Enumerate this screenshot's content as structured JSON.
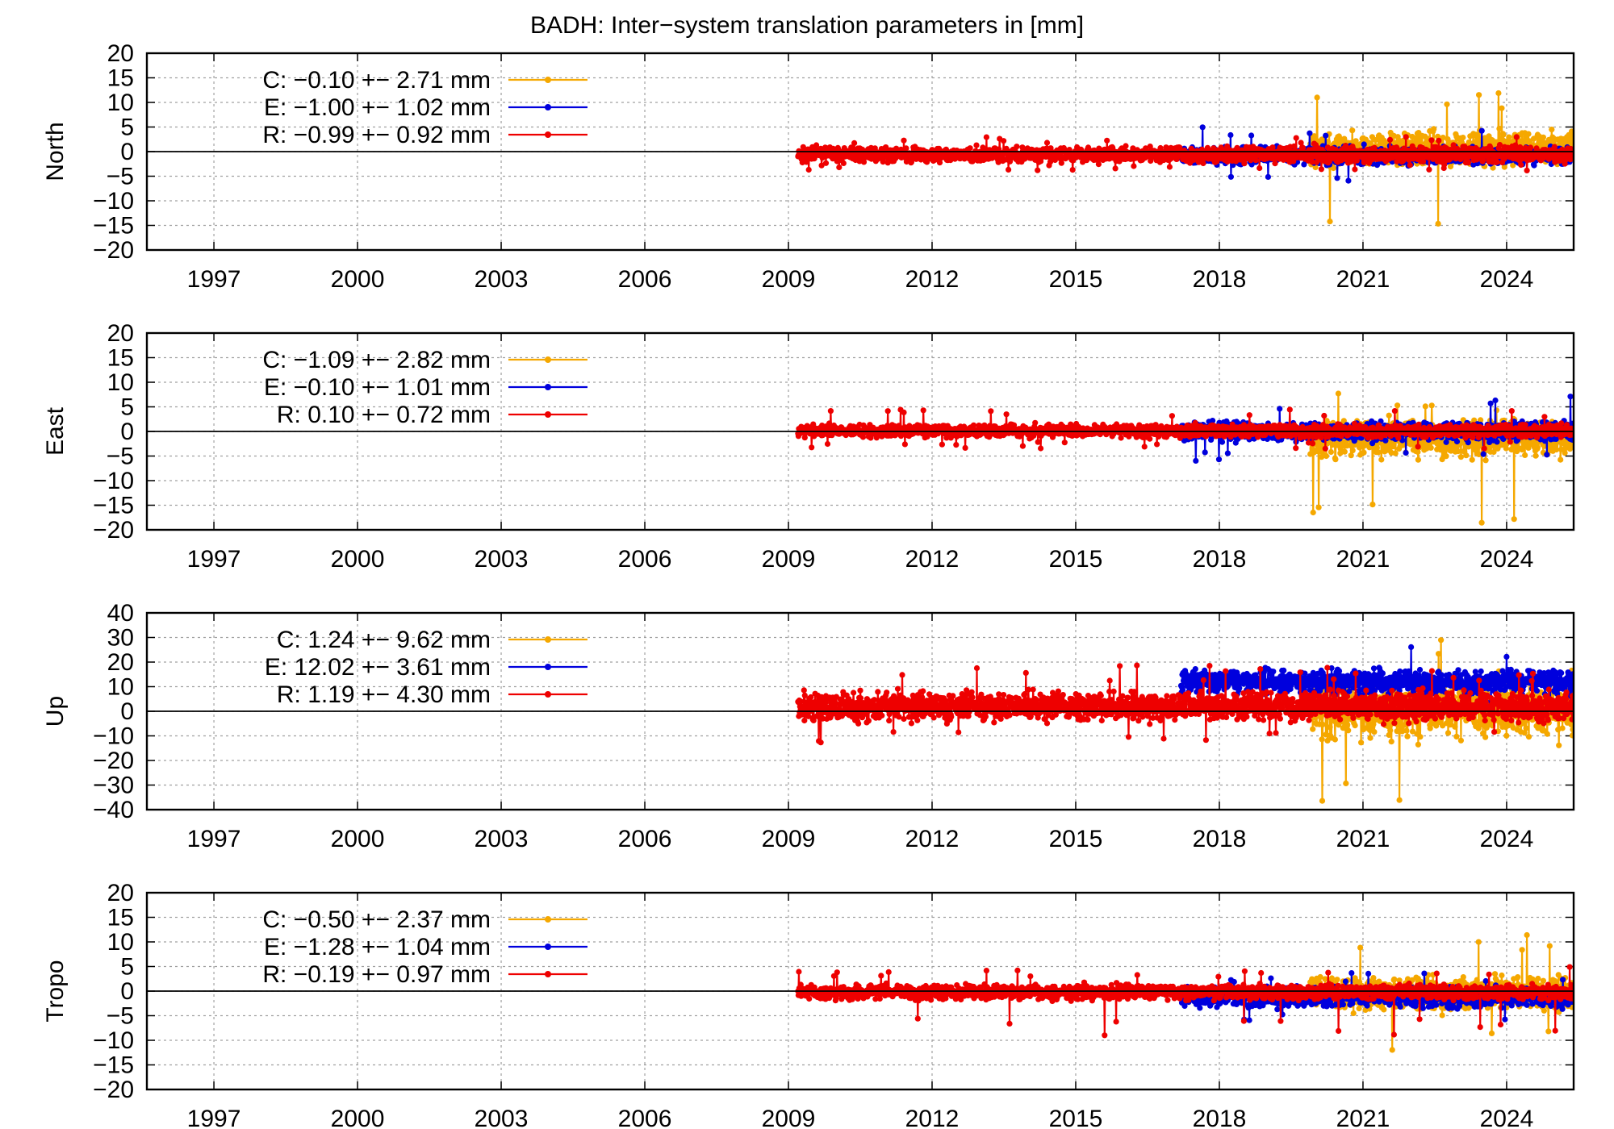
{
  "title": "BADH: Inter−system translation parameters in [mm]",
  "colors": {
    "C": "#f5a800",
    "E": "#0000dd",
    "R": "#ee0000",
    "axis": "#000000",
    "grid": "#a0a0a0"
  },
  "chart_data": [
    {
      "type": "scatter",
      "ylabel": "North",
      "xlim": [
        1995.6,
        2025.4
      ],
      "ylim": [
        -20,
        20
      ],
      "xticks": [
        1997,
        2000,
        2003,
        2006,
        2009,
        2012,
        2015,
        2018,
        2021,
        2024
      ],
      "yticks": [
        -20,
        -15,
        -10,
        -5,
        0,
        5,
        10,
        15,
        20
      ],
      "grid": true,
      "legend_position": "top-left",
      "series": [
        {
          "name": "C",
          "legend": "C:  −0.10 +− 2.71 mm",
          "start": 2019.9,
          "end": 2025.4,
          "center": 0.5,
          "band": 3.5,
          "spike_up": 12.5,
          "spike_down": -19.0
        },
        {
          "name": "E",
          "legend": "E:  −1.00 +− 1.02 mm",
          "start": 2017.2,
          "end": 2025.4,
          "center": -0.8,
          "band": 1.8,
          "spike_up": 5.0,
          "spike_down": -7.0
        },
        {
          "name": "R",
          "legend": "R:  −0.99 +− 0.92 mm",
          "start": 2009.2,
          "end": 2025.4,
          "center": -0.6,
          "band": 1.6,
          "spike_up": 3.0,
          "spike_down": -4.0
        }
      ]
    },
    {
      "type": "scatter",
      "ylabel": "East",
      "xlim": [
        1995.6,
        2025.4
      ],
      "ylim": [
        -20,
        20
      ],
      "xticks": [
        1997,
        2000,
        2003,
        2006,
        2009,
        2012,
        2015,
        2018,
        2021,
        2024
      ],
      "yticks": [
        -20,
        -15,
        -10,
        -5,
        0,
        5,
        10,
        15,
        20
      ],
      "grid": true,
      "legend_position": "top-left",
      "series": [
        {
          "name": "C",
          "legend": "C:  −1.09 +− 2.82 mm",
          "start": 2019.9,
          "end": 2025.4,
          "center": -1.5,
          "band": 4.0,
          "spike_up": 8.0,
          "spike_down": -19.0
        },
        {
          "name": "E",
          "legend": "E:  −0.10 +− 1.01 mm",
          "start": 2017.2,
          "end": 2025.4,
          "center": 0.0,
          "band": 2.0,
          "spike_up": 7.5,
          "spike_down": -6.5
        },
        {
          "name": "R",
          "legend": "R:   0.10 +− 0.72 mm",
          "start": 2009.2,
          "end": 2025.4,
          "center": 0.1,
          "band": 1.3,
          "spike_up": 4.5,
          "spike_down": -3.5
        }
      ]
    },
    {
      "type": "scatter",
      "ylabel": "Up",
      "xlim": [
        1995.6,
        2025.4
      ],
      "ylim": [
        -40,
        40
      ],
      "xticks": [
        1997,
        2000,
        2003,
        2006,
        2009,
        2012,
        2015,
        2018,
        2021,
        2024
      ],
      "yticks": [
        -40,
        -30,
        -20,
        -10,
        0,
        10,
        20,
        30,
        40
      ],
      "grid": true,
      "legend_position": "top-left",
      "series": [
        {
          "name": "C",
          "legend": "C:   1.24 +− 9.62 mm",
          "start": 2019.9,
          "end": 2025.4,
          "center": 1.0,
          "band": 12.0,
          "spike_up": 36.0,
          "spike_down": -38.0
        },
        {
          "name": "E",
          "legend": "E:  12.02 +− 3.61 mm",
          "start": 2017.2,
          "end": 2025.4,
          "center": 12.0,
          "band": 5.0,
          "spike_up": 28.0,
          "spike_down": 2.0
        },
        {
          "name": "R",
          "legend": "R:   1.19 +− 4.30 mm",
          "start": 2009.2,
          "end": 2025.4,
          "center": 2.0,
          "band": 6.0,
          "spike_up": 19.0,
          "spike_down": -14.0
        }
      ]
    },
    {
      "type": "scatter",
      "ylabel": "Tropo",
      "xlim": [
        1995.6,
        2025.4
      ],
      "ylim": [
        -20,
        20
      ],
      "xticks": [
        1997,
        2000,
        2003,
        2006,
        2009,
        2012,
        2015,
        2018,
        2021,
        2024
      ],
      "yticks": [
        -20,
        -15,
        -10,
        -5,
        0,
        5,
        10,
        15,
        20
      ],
      "grid": true,
      "legend_position": "top-left",
      "series": [
        {
          "name": "C",
          "legend": "C:  −0.50 +− 2.37 mm",
          "start": 2019.9,
          "end": 2025.4,
          "center": -0.5,
          "band": 3.5,
          "spike_up": 13.0,
          "spike_down": -12.0
        },
        {
          "name": "E",
          "legend": "E:  −1.28 +− 1.04 mm",
          "start": 2017.2,
          "end": 2025.4,
          "center": -1.3,
          "band": 2.0,
          "spike_up": 4.0,
          "spike_down": -6.0
        },
        {
          "name": "R",
          "legend": "R:  −0.19 +− 0.97 mm",
          "start": 2009.2,
          "end": 2025.4,
          "center": -0.2,
          "band": 1.5,
          "spike_up": 5.0,
          "spike_down": -9.0
        }
      ]
    }
  ]
}
